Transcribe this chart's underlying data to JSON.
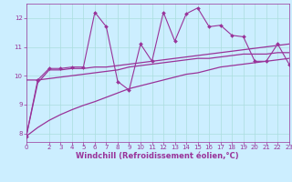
{
  "xlabel": "Windchill (Refroidissement éolien,°C)",
  "background_color": "#cceeff",
  "grid_color": "#aadddd",
  "line_color": "#993399",
  "xlim": [
    0,
    23
  ],
  "ylim": [
    7.7,
    12.5
  ],
  "yticks": [
    8,
    9,
    10,
    11,
    12
  ],
  "xticks": [
    0,
    2,
    3,
    4,
    5,
    6,
    7,
    8,
    9,
    10,
    11,
    12,
    13,
    14,
    15,
    16,
    17,
    18,
    19,
    20,
    21,
    22,
    23
  ],
  "series": [
    {
      "x": [
        0,
        1,
        2,
        3,
        4,
        5,
        6,
        7,
        8,
        9,
        10,
        11,
        12,
        13,
        14,
        15,
        16,
        17,
        18,
        19,
        20,
        21,
        22,
        23
      ],
      "y": [
        7.9,
        9.85,
        10.25,
        10.25,
        10.3,
        10.3,
        12.2,
        11.7,
        9.8,
        9.5,
        11.1,
        10.5,
        12.2,
        11.2,
        12.15,
        12.35,
        11.7,
        11.75,
        11.4,
        11.35,
        10.5,
        10.5,
        11.1,
        10.4
      ],
      "marker": "D",
      "markersize": 2.0,
      "linewidth": 0.8
    },
    {
      "x": [
        0,
        1,
        2,
        3,
        4,
        5,
        6,
        7,
        8,
        9,
        10,
        11,
        12,
        13,
        14,
        15,
        16,
        17,
        18,
        19,
        20,
        21,
        22,
        23
      ],
      "y": [
        9.85,
        9.85,
        9.9,
        9.95,
        10.0,
        10.05,
        10.1,
        10.15,
        10.2,
        10.3,
        10.35,
        10.4,
        10.45,
        10.5,
        10.55,
        10.6,
        10.6,
        10.65,
        10.7,
        10.75,
        10.75,
        10.75,
        10.8,
        10.8
      ],
      "marker": null,
      "markersize": 0,
      "linewidth": 0.9
    },
    {
      "x": [
        0,
        1,
        2,
        3,
        4,
        5,
        6,
        7,
        8,
        9,
        10,
        11,
        12,
        13,
        14,
        15,
        16,
        17,
        18,
        19,
        20,
        21,
        22,
        23
      ],
      "y": [
        7.9,
        9.75,
        10.2,
        10.2,
        10.25,
        10.25,
        10.3,
        10.3,
        10.35,
        10.4,
        10.45,
        10.5,
        10.55,
        10.6,
        10.65,
        10.7,
        10.75,
        10.8,
        10.85,
        10.9,
        10.95,
        11.0,
        11.05,
        11.1
      ],
      "marker": null,
      "markersize": 0,
      "linewidth": 0.9
    },
    {
      "x": [
        0,
        1,
        2,
        3,
        4,
        5,
        6,
        7,
        8,
        9,
        10,
        11,
        12,
        13,
        14,
        15,
        16,
        17,
        18,
        19,
        20,
        21,
        22,
        23
      ],
      "y": [
        7.9,
        8.2,
        8.45,
        8.65,
        8.82,
        8.97,
        9.1,
        9.25,
        9.4,
        9.55,
        9.65,
        9.75,
        9.85,
        9.95,
        10.05,
        10.1,
        10.2,
        10.3,
        10.35,
        10.4,
        10.45,
        10.5,
        10.55,
        10.6
      ],
      "marker": null,
      "markersize": 0,
      "linewidth": 0.9
    }
  ],
  "tick_fontsize": 5.0,
  "xlabel_fontsize": 6.0
}
